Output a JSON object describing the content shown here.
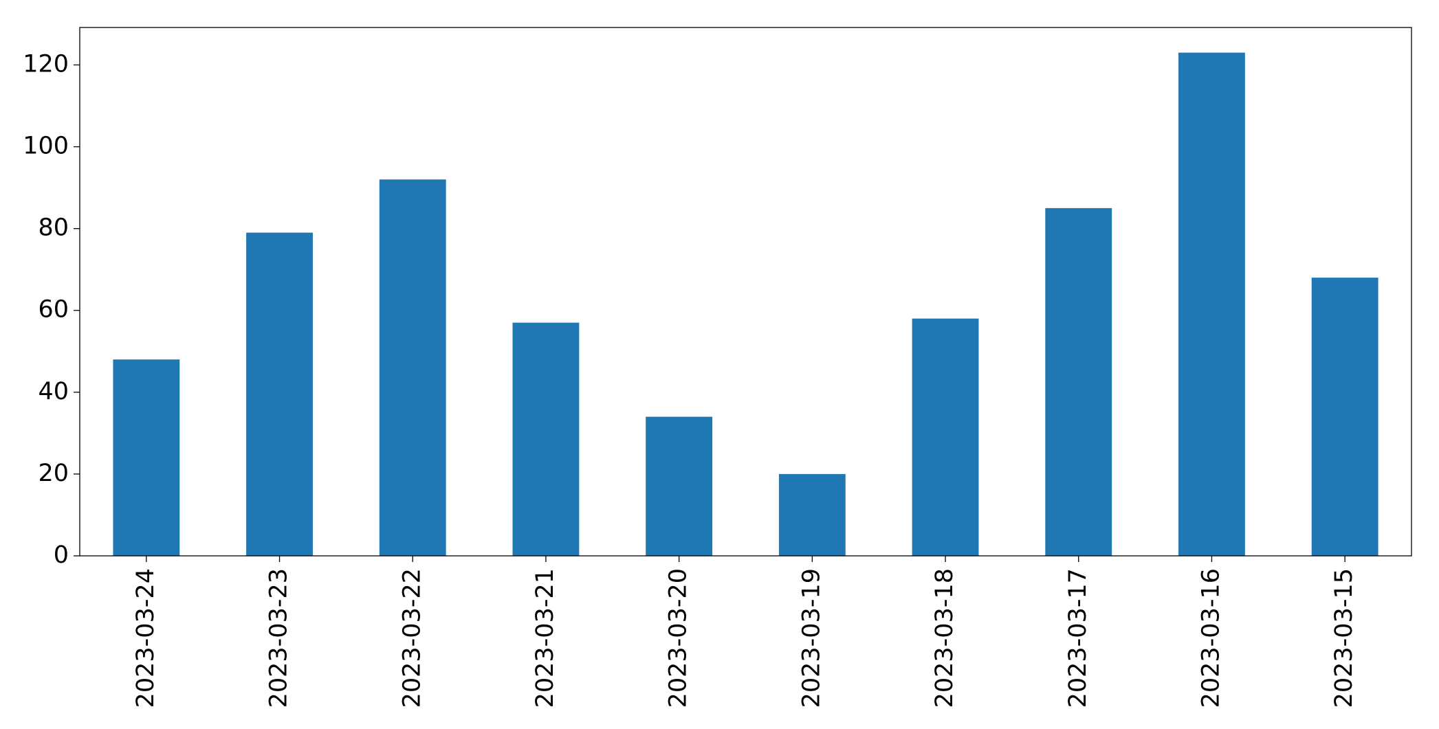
{
  "chart_data": {
    "type": "bar",
    "categories": [
      "2023-03-24",
      "2023-03-23",
      "2023-03-22",
      "2023-03-21",
      "2023-03-20",
      "2023-03-19",
      "2023-03-18",
      "2023-03-17",
      "2023-03-16",
      "2023-03-15"
    ],
    "values": [
      48,
      79,
      92,
      57,
      34,
      20,
      58,
      85,
      123,
      68
    ],
    "color": "#1f77b4",
    "ylim": [
      0,
      129.15
    ],
    "yticks": [
      0,
      20,
      40,
      60,
      80,
      100,
      120
    ],
    "grid": false
  }
}
